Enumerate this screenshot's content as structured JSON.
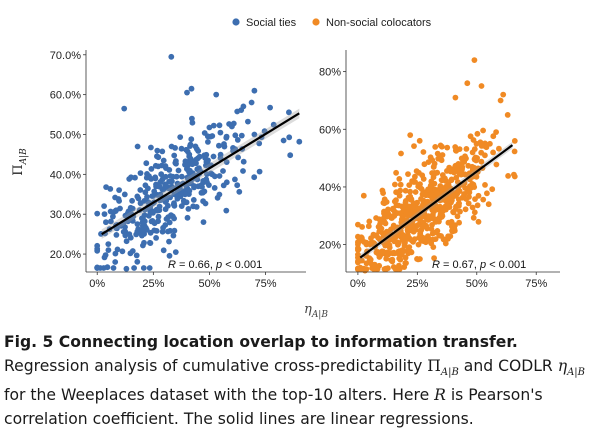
{
  "legend": {
    "items": [
      {
        "label": "Social ties",
        "color": "#3d6eb0"
      },
      {
        "label": "Non-social colocators",
        "color": "#f08a24"
      }
    ],
    "placement": "top"
  },
  "shared_xlabel": "η_{A|B}",
  "chart_data": [
    {
      "type": "scatter",
      "series": [
        {
          "name": "Social ties",
          "color": "#3d6eb0"
        }
      ],
      "ylabel": "Π_{A|B}",
      "xlim": [
        -0.05,
        0.93
      ],
      "ylim": [
        0.155,
        0.712
      ],
      "x_ticks": [
        0,
        0.25,
        0.5,
        0.75
      ],
      "x_tick_labels": [
        "0%",
        "25%",
        "50%",
        "75%"
      ],
      "y_ticks": [
        0.2,
        0.3,
        0.4,
        0.5,
        0.6,
        0.7
      ],
      "y_tick_labels": [
        "20.0%",
        "30.0%",
        "40.0%",
        "50.0%",
        "60.0%",
        "70.0%"
      ],
      "regression": {
        "x": [
          0.02,
          0.9
        ],
        "y": [
          0.25,
          0.553
        ]
      },
      "annotation": {
        "R": "R",
        "r_text": " = 0.66, ",
        "p": "p",
        "p_text": " < 0.001"
      },
      "highlight_points": [
        {
          "x": 0.33,
          "y": 0.695
        },
        {
          "x": 0.12,
          "y": 0.565
        },
        {
          "x": 0.42,
          "y": 0.615
        },
        {
          "x": 0.4,
          "y": 0.605
        },
        {
          "x": 0.53,
          "y": 0.6
        },
        {
          "x": 0.7,
          "y": 0.61
        },
        {
          "x": 0.83,
          "y": 0.485
        },
        {
          "x": 0.9,
          "y": 0.482
        },
        {
          "x": 0.13,
          "y": 0.163
        },
        {
          "x": 0.08,
          "y": 0.18
        },
        {
          "x": 0.05,
          "y": 0.21
        },
        {
          "x": 0.35,
          "y": 0.205
        },
        {
          "x": 0.18,
          "y": 0.47
        },
        {
          "x": 0.7,
          "y": 0.5
        },
        {
          "x": 0.6,
          "y": 0.52
        }
      ]
    },
    {
      "type": "scatter",
      "series": [
        {
          "name": "Non-social colocators",
          "color": "#f08a24"
        }
      ],
      "xlim": [
        -0.05,
        0.85
      ],
      "ylim": [
        0.105,
        0.875
      ],
      "x_ticks": [
        0,
        0.25,
        0.5,
        0.75
      ],
      "x_tick_labels": [
        "0%",
        "25%",
        "50%",
        "75%"
      ],
      "y_ticks": [
        0.2,
        0.4,
        0.6,
        0.8
      ],
      "y_tick_labels": [
        "20%",
        "40%",
        "60%",
        "80%"
      ],
      "regression": {
        "x": [
          0.01,
          0.65
        ],
        "y": [
          0.155,
          0.545
        ]
      },
      "annotation": {
        "R": "R",
        "r_text": " = 0.67, ",
        "p": "p",
        "p_text": " < 0.001"
      },
      "highlight_points": [
        {
          "x": 0.49,
          "y": 0.84
        },
        {
          "x": 0.46,
          "y": 0.76
        },
        {
          "x": 0.52,
          "y": 0.75
        },
        {
          "x": 0.41,
          "y": 0.71
        },
        {
          "x": 0.6,
          "y": 0.7
        },
        {
          "x": 0.63,
          "y": 0.65
        },
        {
          "x": 0.22,
          "y": 0.58
        },
        {
          "x": 0.26,
          "y": 0.56
        },
        {
          "x": 0.01,
          "y": 0.12
        },
        {
          "x": 0.03,
          "y": 0.11
        },
        {
          "x": 0.35,
          "y": 0.23
        },
        {
          "x": 0.55,
          "y": 0.34
        }
      ]
    }
  ],
  "caption": {
    "fig_label": "Fig. 5 Connecting location overlap to information transfer.",
    "t1": " Regression analysis of cumulative cross-predictability ",
    "pi": "Π",
    "sub": "A|B",
    "t2": " and CODLR ",
    "eta": "η",
    "t3": " for the Weeplaces dataset with the top-10 alters. Here ",
    "R": "R",
    "t4": " is Pearson's correlation coefficient. The solid lines are linear regressions."
  }
}
